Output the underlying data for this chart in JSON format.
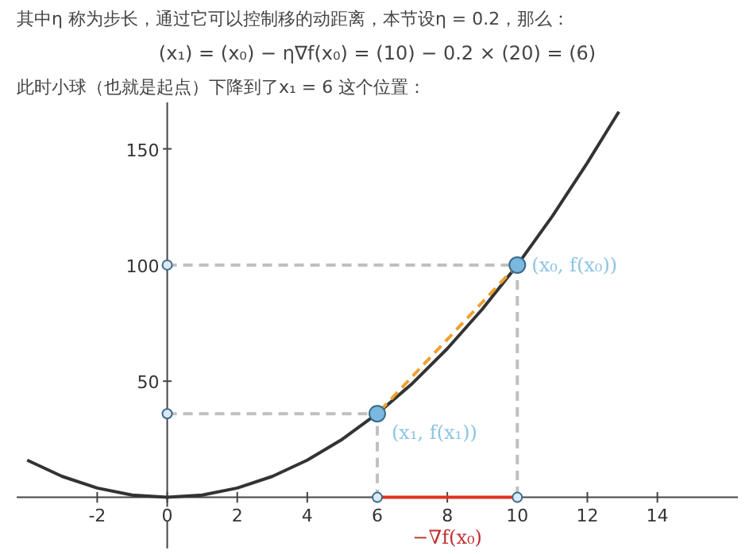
{
  "chart_data": {
    "type": "line",
    "title": "其中η 称为步长，通过它可以控制移的动距离，本节设η = 0.2，那么：",
    "subtitle": "(x₁) = (x₀) − η∇f(x₀) = (10) − 0.2 × (20) = (6)",
    "annotations": [
      "此时小球（也就是起点）下降到了x₁ = 6 这个位置：",
      {
        "text": "(x₀, f(x₀))",
        "x": 10,
        "y": 100
      },
      {
        "text": "(x₁, f(x₁))",
        "x": 6,
        "y": 36
      },
      {
        "text": "−∇f(x₀)",
        "x": 8,
        "y": 0
      }
    ],
    "xlim": [
      -4.3,
      16.3
    ],
    "ylim": [
      -22,
      170
    ],
    "xticks": [
      -2,
      0,
      2,
      4,
      6,
      8,
      10,
      12,
      14
    ],
    "yticks": [
      50,
      100,
      150
    ],
    "grid": false,
    "series": [
      {
        "color": "#333333",
        "x": [
          -4,
          -3,
          -2,
          -1,
          0,
          1,
          2,
          3,
          4,
          5,
          6,
          7,
          8,
          9,
          10,
          11,
          12,
          12.9
        ],
        "values": [
          16,
          9,
          4,
          1,
          0,
          1,
          4,
          9,
          16,
          25,
          36,
          49,
          64,
          81,
          100,
          121,
          144,
          166
        ]
      },
      {
        "line_style": "dashed",
        "color": "#c0c0c0",
        "x": [
          0,
          10,
          10
        ],
        "values": [
          100,
          100,
          0
        ]
      },
      {
        "line_style": "dashed",
        "color": "#c0c0c0",
        "x": [
          0,
          6,
          6
        ],
        "values": [
          36,
          36,
          0
        ]
      },
      {
        "line_style": "dashed",
        "color": "#f0a030",
        "x": [
          10,
          6
        ],
        "values": [
          100,
          36
        ]
      },
      {
        "line_style": "solid",
        "color": "#e03020",
        "x": [
          10,
          6
        ],
        "values": [
          0,
          0
        ]
      },
      {
        "type": "scatter",
        "marker": "circle",
        "color": "#7ab8e0",
        "x": [
          10,
          6
        ],
        "values": [
          100,
          36
        ]
      },
      {
        "type": "scatter",
        "marker": "circle",
        "color": "#dbeaf5",
        "x": [
          0,
          0,
          6,
          10
        ],
        "values": [
          100,
          36,
          0,
          0
        ]
      }
    ]
  }
}
